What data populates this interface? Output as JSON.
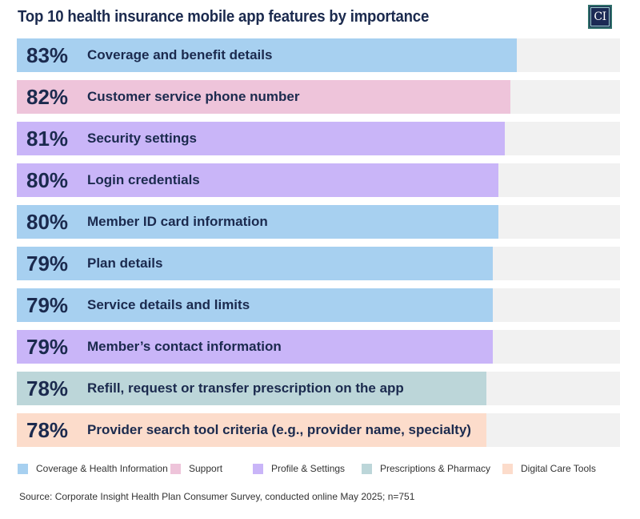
{
  "logo": {
    "text": "CI"
  },
  "chart_data": {
    "type": "bar",
    "orientation": "horizontal",
    "title": "Top 10 health insurance mobile app features by importance",
    "xlabel": "",
    "ylabel": "",
    "xlim": [
      0,
      100
    ],
    "grid": false,
    "legend_position": "bottom",
    "unit": "%",
    "categories": [
      "Coverage and benefit details",
      "Customer service phone number",
      "Security settings",
      "Login credentials",
      "Member ID card information",
      "Plan details",
      "Service details and limits",
      "Member’s contact information",
      "Refill, request or transfer prescription on the app",
      "Provider search tool criteria (e.g., provider name, specialty)"
    ],
    "values": [
      83,
      82,
      81,
      80,
      80,
      79,
      79,
      79,
      78,
      78
    ],
    "value_labels": [
      "83%",
      "82%",
      "81%",
      "80%",
      "80%",
      "79%",
      "79%",
      "79%",
      "78%",
      "78%"
    ],
    "groups": [
      "Coverage & Health Information",
      "Support",
      "Profile & Settings",
      "Profile & Settings",
      "Coverage & Health Information",
      "Coverage & Health Information",
      "Coverage & Health Information",
      "Profile & Settings",
      "Prescriptions & Pharmacy",
      "Digital Care Tools"
    ],
    "legend": [
      {
        "name": "Coverage & Health Information",
        "color": "#a7d0f0"
      },
      {
        "name": "Support",
        "color": "#eec4da"
      },
      {
        "name": "Profile & Settings",
        "color": "#c9b5f8"
      },
      {
        "name": "Prescriptions & Pharmacy",
        "color": "#bcd6d9"
      },
      {
        "name": "Digital Care Tools",
        "color": "#fcdccb"
      }
    ],
    "track_color": "#f1f1f1",
    "source": "Source: Corporate Insight Health Plan Consumer Survey, conducted online May 2025; n=751"
  }
}
